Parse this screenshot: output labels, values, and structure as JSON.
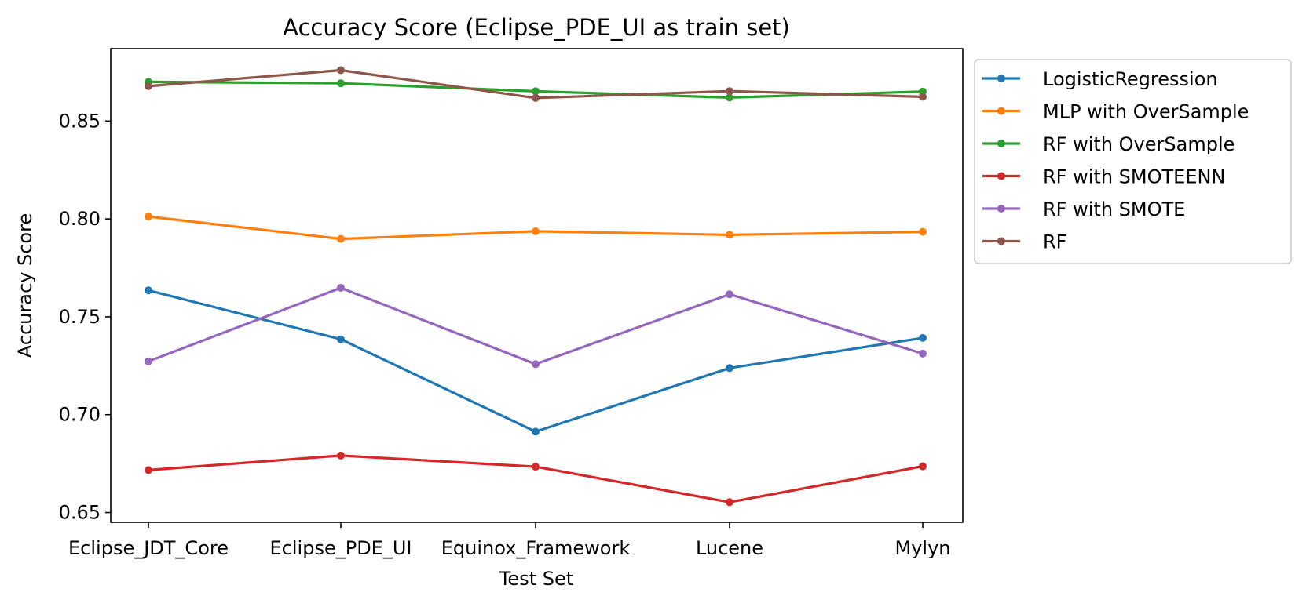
{
  "chart_data": {
    "type": "line",
    "title": "Accuracy Score (Eclipse_PDE_UI as train set)",
    "xlabel": "Test Set",
    "ylabel": "Accuracy Score",
    "categories": [
      "Eclipse_JDT_Core",
      "Eclipse_PDE_UI",
      "Equinox_Framework",
      "Lucene",
      "Mylyn"
    ],
    "ylim": [
      0.645,
      0.887
    ],
    "yticks": [
      0.65,
      0.7,
      0.75,
      0.8,
      0.85
    ],
    "ytick_labels": [
      "0.65",
      "0.70",
      "0.75",
      "0.80",
      "0.85"
    ],
    "grid": false,
    "legend_position": "outside top-right",
    "series": [
      {
        "name": "LogisticRegression",
        "color": "#1f77b4",
        "values": [
          0.7635,
          0.7385,
          0.6913,
          0.7238,
          0.7392
        ]
      },
      {
        "name": "MLP with OverSample",
        "color": "#ff7f0e",
        "values": [
          0.8012,
          0.7898,
          0.7937,
          0.7919,
          0.7934
        ]
      },
      {
        "name": "RF with OverSample",
        "color": "#2ca02c",
        "values": [
          0.87,
          0.8693,
          0.8652,
          0.862,
          0.8651
        ]
      },
      {
        "name": "RF with SMOTEENN",
        "color": "#d62728",
        "values": [
          0.6717,
          0.6791,
          0.6734,
          0.6553,
          0.6736
        ]
      },
      {
        "name": "RF with SMOTE",
        "color": "#9467bd",
        "values": [
          0.7272,
          0.7648,
          0.7258,
          0.7615,
          0.7312
        ]
      },
      {
        "name": "RF",
        "color": "#8c564b",
        "values": [
          0.8678,
          0.876,
          0.8618,
          0.8653,
          0.8624
        ]
      }
    ]
  }
}
